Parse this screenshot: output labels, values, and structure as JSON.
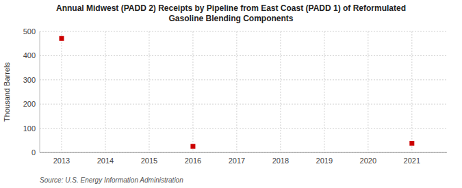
{
  "chart_data": {
    "type": "scatter",
    "title": "Annual Midwest (PADD 2) Receipts by Pipeline from East Coast (PADD 1) of Reformulated\nGasoline Blending Components",
    "y_label": "Thousand Barrels",
    "source": "Source: U.S. Energy Information Administration",
    "x": [
      2013,
      2016,
      2021
    ],
    "values": [
      471,
      25,
      38
    ],
    "color": "#cc0000",
    "marker": "square",
    "xlim": [
      2012.5,
      2021.8
    ],
    "ylim": [
      0,
      500
    ],
    "xticks": [
      2013,
      2014,
      2015,
      2016,
      2017,
      2018,
      2019,
      2020,
      2021
    ],
    "yticks": [
      0,
      100,
      200,
      300,
      400,
      500
    ],
    "grid": true
  }
}
